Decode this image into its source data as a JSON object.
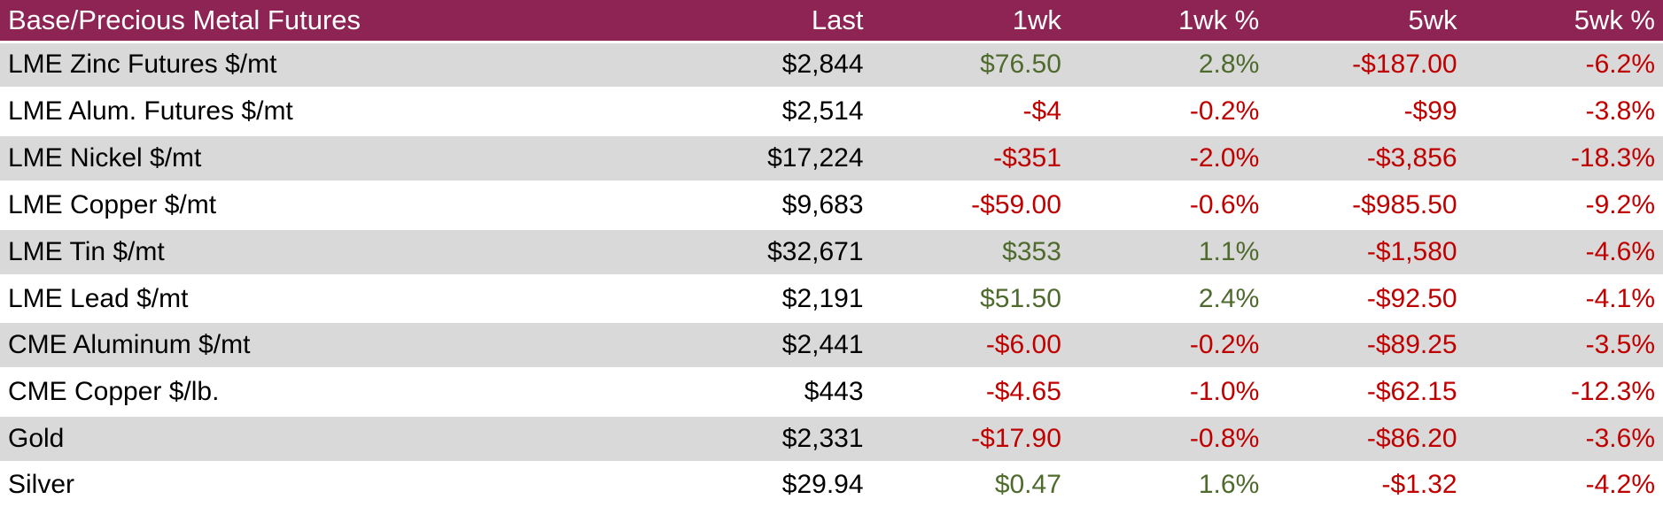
{
  "table": {
    "title": "Base/Precious Metal Futures",
    "columns": [
      "Base/Precious Metal Futures",
      "Last",
      "1wk",
      "1wk %",
      "5wk",
      "5wk %"
    ],
    "rows": [
      {
        "cells": [
          "LME Zinc Futures $/mt",
          "$2,844",
          "$76.50",
          "2.8%",
          "-$187.00",
          "-6.2%"
        ]
      },
      {
        "cells": [
          "LME Alum. Futures $/mt",
          "$2,514",
          "-$4",
          "-0.2%",
          "-$99",
          "-3.8%"
        ]
      },
      {
        "cells": [
          "LME Nickel $/mt",
          "$17,224",
          "-$351",
          "-2.0%",
          "-$3,856",
          "-18.3%"
        ]
      },
      {
        "cells": [
          "LME Copper $/mt",
          "$9,683",
          "-$59.00",
          "-0.6%",
          "-$985.50",
          "-9.2%"
        ]
      },
      {
        "cells": [
          "LME Tin $/mt",
          "$32,671",
          "$353",
          "1.1%",
          "-$1,580",
          "-4.6%"
        ]
      },
      {
        "cells": [
          "LME Lead $/mt",
          "$2,191",
          "$51.50",
          "2.4%",
          "-$92.50",
          "-4.1%"
        ]
      },
      {
        "cells": [
          "CME Aluminum $/mt",
          "$2,441",
          "-$6.00",
          "-0.2%",
          "-$89.25",
          "-3.5%"
        ]
      },
      {
        "cells": [
          "CME Copper $/lb.",
          "$443",
          "-$4.65",
          "-1.0%",
          "-$62.15",
          "-12.3%"
        ]
      },
      {
        "cells": [
          "Gold",
          "$2,331",
          "-$17.90",
          "-0.8%",
          "-$86.20",
          "-3.6%"
        ]
      },
      {
        "cells": [
          "Silver",
          "$29.94",
          "$0.47",
          "1.6%",
          "-$1.32",
          "-4.2%"
        ]
      }
    ]
  },
  "colors": {
    "header_bg": "#8E2454",
    "header_text": "#FFFFFF",
    "stripe_bg": "#D9D9D9",
    "row_bg": "#FFFFFF",
    "positive": "#4F6A2D",
    "negative": "#C00000",
    "text": "#000000"
  }
}
